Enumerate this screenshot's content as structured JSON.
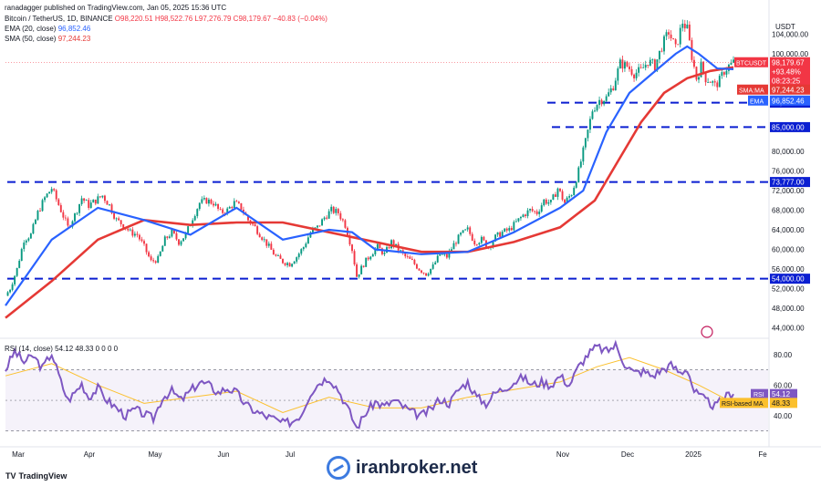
{
  "header": {
    "published": "ranadagger published on TradingView.com, Jan 05, 2025 15:36 UTC",
    "symbol": "Bitcoin / TetherUS, 1D, BINANCE",
    "ohlc": "O98,220.51 H98,522.76 L97,276.79 C98,179.67 −40.83 (−0.04%)",
    "ema_legend_name": "EMA (20, close)",
    "ema_legend_value": "96,852.46",
    "sma_legend_name": "SMA (50, close)",
    "sma_legend_value": "97,244.23"
  },
  "price_axis": {
    "currency": "USDT",
    "ticks": [
      "104,000.00",
      "100,000.00",
      "90,000.00",
      "85,000.00",
      "80,000.00",
      "76,000.00",
      "72,000.00",
      "68,000.00",
      "64,000.00",
      "60,000.00",
      "56,000.00",
      "52,000.00",
      "48,000.00",
      "44,000.00"
    ],
    "levels": [
      "90,000.00",
      "85,000.00",
      "73,777.00",
      "54,000.00"
    ],
    "symbol_tag": "BTCUSDT",
    "last_price": "98,179.67",
    "last_change": "+93.48%",
    "countdown": "08:23:25",
    "sma_tag": "SMA:MA",
    "sma_value": "97,244.23",
    "ema_tag": "EMA",
    "ema_value": "96,852.46"
  },
  "rsi_panel": {
    "legend": "RSI (14, close) 54.12 48.33 0 0 0 0",
    "ticks": [
      "80.00",
      "60.00",
      "40.00"
    ],
    "rsi_tag": "RSI",
    "rsi_value": "54.12",
    "ma_tag": "RSI-based MA",
    "ma_value": "48.33"
  },
  "time_axis": {
    "labels": [
      "Mar",
      "Apr",
      "May",
      "Jun",
      "Jul",
      "Nov",
      "Dec",
      "2025",
      "Fe"
    ]
  },
  "footer": {
    "brand": "TradingView",
    "watermark": "iranbroker.net"
  },
  "colors": {
    "up": "#089981",
    "down": "#f23645",
    "ema": "#2962ff",
    "sma": "#e53935",
    "rsi": "#7e57c2",
    "rsi_ma": "#fbc02d",
    "level": "#0b1fd1"
  },
  "chart_data": {
    "type": "candlestick",
    "title": "Bitcoin / TetherUS, 1D, BINANCE",
    "ylim": [
      42000,
      111000
    ],
    "levels": [
      90000,
      85000,
      73777,
      54000
    ],
    "x_labels": [
      "Mar",
      "Apr",
      "May",
      "Jun",
      "Jul",
      "Nov",
      "Dec",
      "2025",
      "Fe"
    ],
    "close_path": [
      {
        "d": 0,
        "v": 50500
      },
      {
        "d": 2,
        "v": 52000
      },
      {
        "d": 5,
        "v": 56000
      },
      {
        "d": 8,
        "v": 62000
      },
      {
        "d": 11,
        "v": 63000
      },
      {
        "d": 14,
        "v": 67500
      },
      {
        "d": 17,
        "v": 70500
      },
      {
        "d": 20,
        "v": 72500
      },
      {
        "d": 24,
        "v": 68000
      },
      {
        "d": 27,
        "v": 64500
      },
      {
        "d": 30,
        "v": 67000
      },
      {
        "d": 33,
        "v": 70500
      },
      {
        "d": 36,
        "v": 69000
      },
      {
        "d": 39,
        "v": 70000
      },
      {
        "d": 42,
        "v": 71000
      },
      {
        "d": 45,
        "v": 69000
      },
      {
        "d": 48,
        "v": 66000
      },
      {
        "d": 51,
        "v": 65000
      },
      {
        "d": 54,
        "v": 63500
      },
      {
        "d": 57,
        "v": 63000
      },
      {
        "d": 60,
        "v": 60500
      },
      {
        "d": 63,
        "v": 57500
      },
      {
        "d": 66,
        "v": 58000
      },
      {
        "d": 69,
        "v": 62000
      },
      {
        "d": 72,
        "v": 63500
      },
      {
        "d": 75,
        "v": 61500
      },
      {
        "d": 78,
        "v": 63000
      },
      {
        "d": 81,
        "v": 66500
      },
      {
        "d": 84,
        "v": 69500
      },
      {
        "d": 87,
        "v": 70000
      },
      {
        "d": 90,
        "v": 69500
      },
      {
        "d": 93,
        "v": 67500
      },
      {
        "d": 96,
        "v": 68000
      },
      {
        "d": 99,
        "v": 69500
      },
      {
        "d": 102,
        "v": 68500
      },
      {
        "d": 105,
        "v": 66000
      },
      {
        "d": 108,
        "v": 64500
      },
      {
        "d": 111,
        "v": 62500
      },
      {
        "d": 114,
        "v": 60500
      },
      {
        "d": 117,
        "v": 58500
      },
      {
        "d": 120,
        "v": 57500
      },
      {
        "d": 123,
        "v": 57000
      },
      {
        "d": 126,
        "v": 58500
      },
      {
        "d": 129,
        "v": 60500
      },
      {
        "d": 132,
        "v": 63500
      },
      {
        "d": 135,
        "v": 64500
      },
      {
        "d": 138,
        "v": 66500
      },
      {
        "d": 141,
        "v": 68000
      },
      {
        "d": 144,
        "v": 67500
      },
      {
        "d": 147,
        "v": 65000
      },
      {
        "d": 150,
        "v": 60000
      },
      {
        "d": 152,
        "v": 54500
      },
      {
        "d": 155,
        "v": 57000
      },
      {
        "d": 158,
        "v": 59000
      },
      {
        "d": 161,
        "v": 60500
      },
      {
        "d": 164,
        "v": 59000
      },
      {
        "d": 167,
        "v": 61500
      },
      {
        "d": 170,
        "v": 60000
      },
      {
        "d": 173,
        "v": 58500
      },
      {
        "d": 176,
        "v": 57500
      },
      {
        "d": 179,
        "v": 56000
      },
      {
        "d": 182,
        "v": 55000
      },
      {
        "d": 185,
        "v": 56500
      },
      {
        "d": 188,
        "v": 59000
      },
      {
        "d": 191,
        "v": 58500
      },
      {
        "d": 194,
        "v": 61000
      },
      {
        "d": 197,
        "v": 63000
      },
      {
        "d": 200,
        "v": 64000
      },
      {
        "d": 203,
        "v": 61500
      },
      {
        "d": 206,
        "v": 62000
      },
      {
        "d": 209,
        "v": 60500
      },
      {
        "d": 212,
        "v": 62500
      },
      {
        "d": 215,
        "v": 63500
      },
      {
        "d": 218,
        "v": 64000
      },
      {
        "d": 221,
        "v": 65500
      },
      {
        "d": 224,
        "v": 67000
      },
      {
        "d": 227,
        "v": 68000
      },
      {
        "d": 230,
        "v": 67500
      },
      {
        "d": 233,
        "v": 70000
      },
      {
        "d": 236,
        "v": 69500
      },
      {
        "d": 239,
        "v": 72500
      },
      {
        "d": 242,
        "v": 69500
      },
      {
        "d": 245,
        "v": 71500
      },
      {
        "d": 248,
        "v": 76000
      },
      {
        "d": 251,
        "v": 82000
      },
      {
        "d": 254,
        "v": 88500
      },
      {
        "d": 257,
        "v": 90500
      },
      {
        "d": 260,
        "v": 91000
      },
      {
        "d": 263,
        "v": 93500
      },
      {
        "d": 266,
        "v": 98000
      },
      {
        "d": 269,
        "v": 97500
      },
      {
        "d": 272,
        "v": 96000
      },
      {
        "d": 275,
        "v": 96500
      },
      {
        "d": 278,
        "v": 98500
      },
      {
        "d": 281,
        "v": 97500
      },
      {
        "d": 284,
        "v": 101500
      },
      {
        "d": 287,
        "v": 104500
      },
      {
        "d": 290,
        "v": 101000
      },
      {
        "d": 293,
        "v": 106500
      },
      {
        "d": 295,
        "v": 105000
      },
      {
        "d": 297,
        "v": 99500
      },
      {
        "d": 299,
        "v": 95000
      },
      {
        "d": 301,
        "v": 97500
      },
      {
        "d": 303,
        "v": 95000
      },
      {
        "d": 305,
        "v": 94500
      },
      {
        "d": 307,
        "v": 93500
      },
      {
        "d": 309,
        "v": 94500
      },
      {
        "d": 311,
        "v": 96500
      },
      {
        "d": 313,
        "v": 97500
      },
      {
        "d": 315,
        "v": 98200
      }
    ],
    "ema20": [
      {
        "d": 0,
        "v": 48500
      },
      {
        "d": 20,
        "v": 62000
      },
      {
        "d": 40,
        "v": 68500
      },
      {
        "d": 60,
        "v": 66000
      },
      {
        "d": 80,
        "v": 63000
      },
      {
        "d": 100,
        "v": 68500
      },
      {
        "d": 120,
        "v": 62000
      },
      {
        "d": 140,
        "v": 64000
      },
      {
        "d": 150,
        "v": 63500
      },
      {
        "d": 160,
        "v": 60000
      },
      {
        "d": 180,
        "v": 59000
      },
      {
        "d": 200,
        "v": 59500
      },
      {
        "d": 220,
        "v": 63500
      },
      {
        "d": 240,
        "v": 68500
      },
      {
        "d": 250,
        "v": 72000
      },
      {
        "d": 260,
        "v": 84000
      },
      {
        "d": 270,
        "v": 92000
      },
      {
        "d": 280,
        "v": 96000
      },
      {
        "d": 290,
        "v": 100000
      },
      {
        "d": 295,
        "v": 101500
      },
      {
        "d": 300,
        "v": 100000
      },
      {
        "d": 308,
        "v": 97000
      },
      {
        "d": 315,
        "v": 96852
      }
    ],
    "sma50": [
      {
        "d": 0,
        "v": 46000
      },
      {
        "d": 20,
        "v": 53500
      },
      {
        "d": 40,
        "v": 62000
      },
      {
        "d": 60,
        "v": 66000
      },
      {
        "d": 80,
        "v": 65000
      },
      {
        "d": 100,
        "v": 65500
      },
      {
        "d": 120,
        "v": 65500
      },
      {
        "d": 140,
        "v": 63500
      },
      {
        "d": 160,
        "v": 61500
      },
      {
        "d": 180,
        "v": 59500
      },
      {
        "d": 200,
        "v": 59500
      },
      {
        "d": 220,
        "v": 61500
      },
      {
        "d": 240,
        "v": 64500
      },
      {
        "d": 255,
        "v": 70000
      },
      {
        "d": 265,
        "v": 78000
      },
      {
        "d": 275,
        "v": 86000
      },
      {
        "d": 285,
        "v": 92000
      },
      {
        "d": 295,
        "v": 95000
      },
      {
        "d": 305,
        "v": 96500
      },
      {
        "d": 315,
        "v": 97244
      }
    ],
    "rsi": {
      "ylim": [
        22,
        90
      ],
      "upper": 70,
      "lower": 30,
      "mid": 50,
      "values": [
        {
          "d": 0,
          "v": 70
        },
        {
          "d": 4,
          "v": 82
        },
        {
          "d": 8,
          "v": 75
        },
        {
          "d": 12,
          "v": 79
        },
        {
          "d": 16,
          "v": 71
        },
        {
          "d": 20,
          "v": 81
        },
        {
          "d": 24,
          "v": 62
        },
        {
          "d": 27,
          "v": 50
        },
        {
          "d": 30,
          "v": 55
        },
        {
          "d": 33,
          "v": 61
        },
        {
          "d": 36,
          "v": 52
        },
        {
          "d": 40,
          "v": 58
        },
        {
          "d": 44,
          "v": 50
        },
        {
          "d": 48,
          "v": 45
        },
        {
          "d": 52,
          "v": 40
        },
        {
          "d": 56,
          "v": 44
        },
        {
          "d": 60,
          "v": 41
        },
        {
          "d": 64,
          "v": 38
        },
        {
          "d": 68,
          "v": 52
        },
        {
          "d": 72,
          "v": 56
        },
        {
          "d": 76,
          "v": 50
        },
        {
          "d": 80,
          "v": 56
        },
        {
          "d": 84,
          "v": 62
        },
        {
          "d": 88,
          "v": 60
        },
        {
          "d": 92,
          "v": 55
        },
        {
          "d": 96,
          "v": 58
        },
        {
          "d": 100,
          "v": 55
        },
        {
          "d": 104,
          "v": 47
        },
        {
          "d": 108,
          "v": 43
        },
        {
          "d": 112,
          "v": 40
        },
        {
          "d": 116,
          "v": 38
        },
        {
          "d": 120,
          "v": 35
        },
        {
          "d": 124,
          "v": 36
        },
        {
          "d": 128,
          "v": 41
        },
        {
          "d": 132,
          "v": 55
        },
        {
          "d": 136,
          "v": 62
        },
        {
          "d": 140,
          "v": 65
        },
        {
          "d": 144,
          "v": 57
        },
        {
          "d": 148,
          "v": 45
        },
        {
          "d": 152,
          "v": 32
        },
        {
          "d": 156,
          "v": 42
        },
        {
          "d": 160,
          "v": 49
        },
        {
          "d": 164,
          "v": 46
        },
        {
          "d": 168,
          "v": 50
        },
        {
          "d": 172,
          "v": 46
        },
        {
          "d": 176,
          "v": 42
        },
        {
          "d": 180,
          "v": 40
        },
        {
          "d": 184,
          "v": 44
        },
        {
          "d": 188,
          "v": 51
        },
        {
          "d": 192,
          "v": 48
        },
        {
          "d": 196,
          "v": 57
        },
        {
          "d": 200,
          "v": 62
        },
        {
          "d": 204,
          "v": 52
        },
        {
          "d": 208,
          "v": 48
        },
        {
          "d": 212,
          "v": 55
        },
        {
          "d": 216,
          "v": 58
        },
        {
          "d": 220,
          "v": 62
        },
        {
          "d": 224,
          "v": 65
        },
        {
          "d": 228,
          "v": 60
        },
        {
          "d": 232,
          "v": 62
        },
        {
          "d": 236,
          "v": 60
        },
        {
          "d": 240,
          "v": 66
        },
        {
          "d": 244,
          "v": 60
        },
        {
          "d": 248,
          "v": 72
        },
        {
          "d": 252,
          "v": 80
        },
        {
          "d": 256,
          "v": 85
        },
        {
          "d": 260,
          "v": 82
        },
        {
          "d": 264,
          "v": 86
        },
        {
          "d": 268,
          "v": 74
        },
        {
          "d": 272,
          "v": 68
        },
        {
          "d": 276,
          "v": 69
        },
        {
          "d": 280,
          "v": 66
        },
        {
          "d": 284,
          "v": 70
        },
        {
          "d": 288,
          "v": 73
        },
        {
          "d": 292,
          "v": 68
        },
        {
          "d": 295,
          "v": 71
        },
        {
          "d": 298,
          "v": 56
        },
        {
          "d": 301,
          "v": 52
        },
        {
          "d": 304,
          "v": 49
        },
        {
          "d": 307,
          "v": 46
        },
        {
          "d": 310,
          "v": 50
        },
        {
          "d": 313,
          "v": 54
        },
        {
          "d": 315,
          "v": 54.12
        }
      ],
      "ma": [
        {
          "d": 0,
          "v": 66
        },
        {
          "d": 20,
          "v": 74
        },
        {
          "d": 40,
          "v": 60
        },
        {
          "d": 60,
          "v": 48
        },
        {
          "d": 80,
          "v": 52
        },
        {
          "d": 100,
          "v": 56
        },
        {
          "d": 120,
          "v": 42
        },
        {
          "d": 140,
          "v": 52
        },
        {
          "d": 160,
          "v": 45
        },
        {
          "d": 180,
          "v": 45
        },
        {
          "d": 200,
          "v": 52
        },
        {
          "d": 220,
          "v": 57
        },
        {
          "d": 240,
          "v": 62
        },
        {
          "d": 256,
          "v": 72
        },
        {
          "d": 270,
          "v": 78
        },
        {
          "d": 285,
          "v": 70
        },
        {
          "d": 300,
          "v": 60
        },
        {
          "d": 315,
          "v": 48.33
        }
      ]
    }
  }
}
